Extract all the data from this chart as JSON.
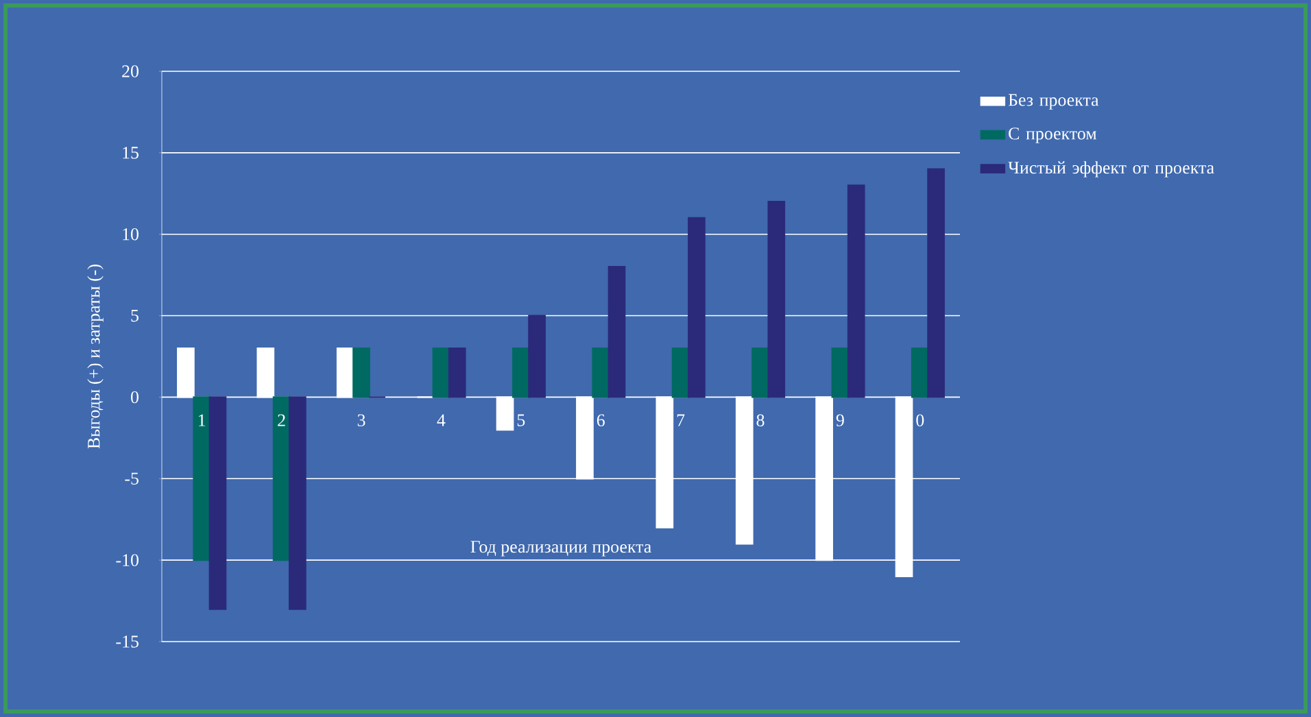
{
  "chart_data": {
    "type": "bar",
    "xlabel": "Год реализации проекта",
    "ylabel": "Выгоды (+) и затраты (-)",
    "categories": [
      "1",
      "2",
      "3",
      "4",
      "5",
      "6",
      "7",
      "8",
      "9",
      "0"
    ],
    "series": [
      {
        "name": "Без проекта",
        "color": "#ffffff",
        "values": [
          3,
          3,
          3,
          0,
          -2,
          -5,
          -8,
          -9,
          -10,
          -11
        ]
      },
      {
        "name": "С проектом",
        "color": "#006a62",
        "values": [
          -10,
          -10,
          3,
          3,
          3,
          3,
          3,
          3,
          3,
          3
        ]
      },
      {
        "name": "Чистый эффект от проекта",
        "color": "#2b2a7a",
        "values": [
          -13,
          -13,
          0,
          3,
          5,
          8,
          11,
          12,
          13,
          14
        ]
      }
    ],
    "ylim": [
      -15,
      20
    ],
    "yticks": [
      -15,
      -10,
      -5,
      0,
      5,
      10,
      15,
      20
    ],
    "grid": "y",
    "legend": "right"
  }
}
